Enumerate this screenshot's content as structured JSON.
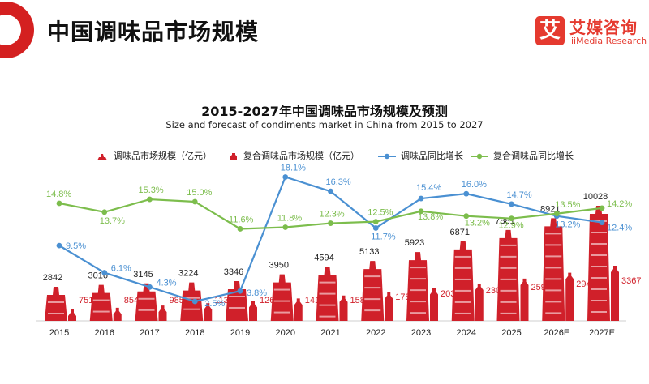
{
  "header": {
    "title": "中国调味品市场规模"
  },
  "brand": {
    "name_cn": "艾媒咨询",
    "name_en": "iiMedia Research",
    "mark": "艾"
  },
  "colors": {
    "accent": "#d42020",
    "bar": "#d0202a",
    "yoy_blue": "#4a90d2",
    "yoy_green": "#7cbd4c",
    "value_red": "#d0202a"
  },
  "chart_data": {
    "type": "bar",
    "title": "2015-2027年中国调味品市场规模及预测",
    "subtitle": "Size and forecast of condiments market in China from 2015 to 2027",
    "categories": [
      "2015",
      "2016",
      "2017",
      "2018",
      "2019",
      "2020",
      "2021",
      "2022",
      "2023",
      "2024",
      "2025",
      "2026E",
      "2027E"
    ],
    "series": [
      {
        "name": "调味品市场规模（亿元）",
        "kind": "bar",
        "values": [
          2842,
          3016,
          3145,
          3224,
          3346,
          3950,
          4594,
          5133,
          5923,
          6871,
          7881,
          8921,
          10028
        ]
      },
      {
        "name": "复合调味品市场规模（亿元）",
        "kind": "bar",
        "values": [
          751,
          854,
          985,
          1133,
          1264,
          1414,
          1588,
          1786,
          2032,
          2301,
          2597,
          2948,
          3367
        ]
      },
      {
        "name": "调味品同比增长",
        "kind": "line",
        "values": [
          9.5,
          6.1,
          4.3,
          2.5,
          3.8,
          18.1,
          16.3,
          11.7,
          15.4,
          16.0,
          14.7,
          13.2,
          12.4
        ],
        "labels": [
          "9.5%",
          "6.1%",
          "4.3%",
          "2.5%",
          "3.8%",
          "18.1%",
          "16.3%",
          "11.7%",
          "15.4%",
          "16.0%",
          "14.7%",
          "13.2%",
          "12.4%"
        ]
      },
      {
        "name": "复合调味品同比增长",
        "kind": "line",
        "values": [
          14.8,
          13.7,
          15.3,
          15.0,
          11.6,
          11.8,
          12.3,
          12.5,
          13.8,
          13.2,
          12.9,
          13.5,
          14.2
        ],
        "labels": [
          "14.8%",
          "13.7%",
          "15.3%",
          "15.0%",
          "11.6%",
          "11.8%",
          "12.3%",
          "12.5%",
          "13.8%",
          "13.2%",
          "12.9%",
          "13.5%",
          "14.2%"
        ]
      }
    ],
    "grid": false,
    "legend_position": "top"
  }
}
